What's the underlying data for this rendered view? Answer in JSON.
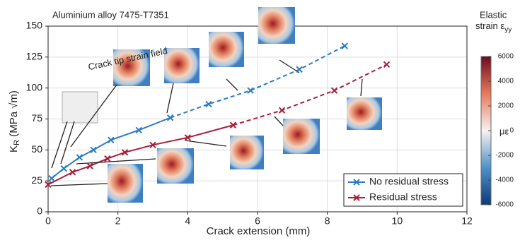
{
  "chart_data": {
    "type": "line",
    "annotation": "Aluminium alloy 7475-T7351",
    "annotation2": "Crack tip strain field",
    "xlabel": "Crack extension (mm)",
    "ylabel": "K",
    "ylabel_sub": "R",
    "ylabel_rest": " (MPa √m)",
    "xlim": [
      0,
      12
    ],
    "xticks": [
      0,
      2,
      4,
      6,
      8,
      10,
      12
    ],
    "ylim": [
      0,
      150
    ],
    "yticks": [
      0,
      25,
      50,
      75,
      100,
      125,
      150
    ],
    "grid": true,
    "legend": "lower right",
    "series": [
      {
        "name": "No residual stress",
        "color": "#2a7bc4",
        "dash_from": 6,
        "x": [
          0.1,
          0.45,
          0.9,
          1.3,
          1.8,
          2.6,
          3.5,
          4.6,
          5.8,
          7.2,
          8.5
        ],
        "values": [
          27,
          35,
          44,
          50,
          58,
          66,
          76,
          87,
          98,
          115,
          134
        ]
      },
      {
        "name": "Residual stress",
        "color": "#a81f3c",
        "dash_from": 7,
        "x": [
          0,
          0.7,
          1.2,
          1.7,
          2.2,
          3.0,
          4.0,
          5.3,
          6.7,
          8.2,
          9.7
        ],
        "values": [
          22,
          32,
          37,
          43,
          48,
          54,
          60,
          70,
          82,
          98,
          119
        ]
      }
    ],
    "colorbar": {
      "title": "Elastic",
      "title2": "strain ε",
      "title2_sub": "yy",
      "unit": "με",
      "lim": [
        -6000,
        6000
      ],
      "ticks": [
        6000,
        4000,
        2000,
        0,
        -2000,
        -4000,
        -6000
      ]
    }
  }
}
